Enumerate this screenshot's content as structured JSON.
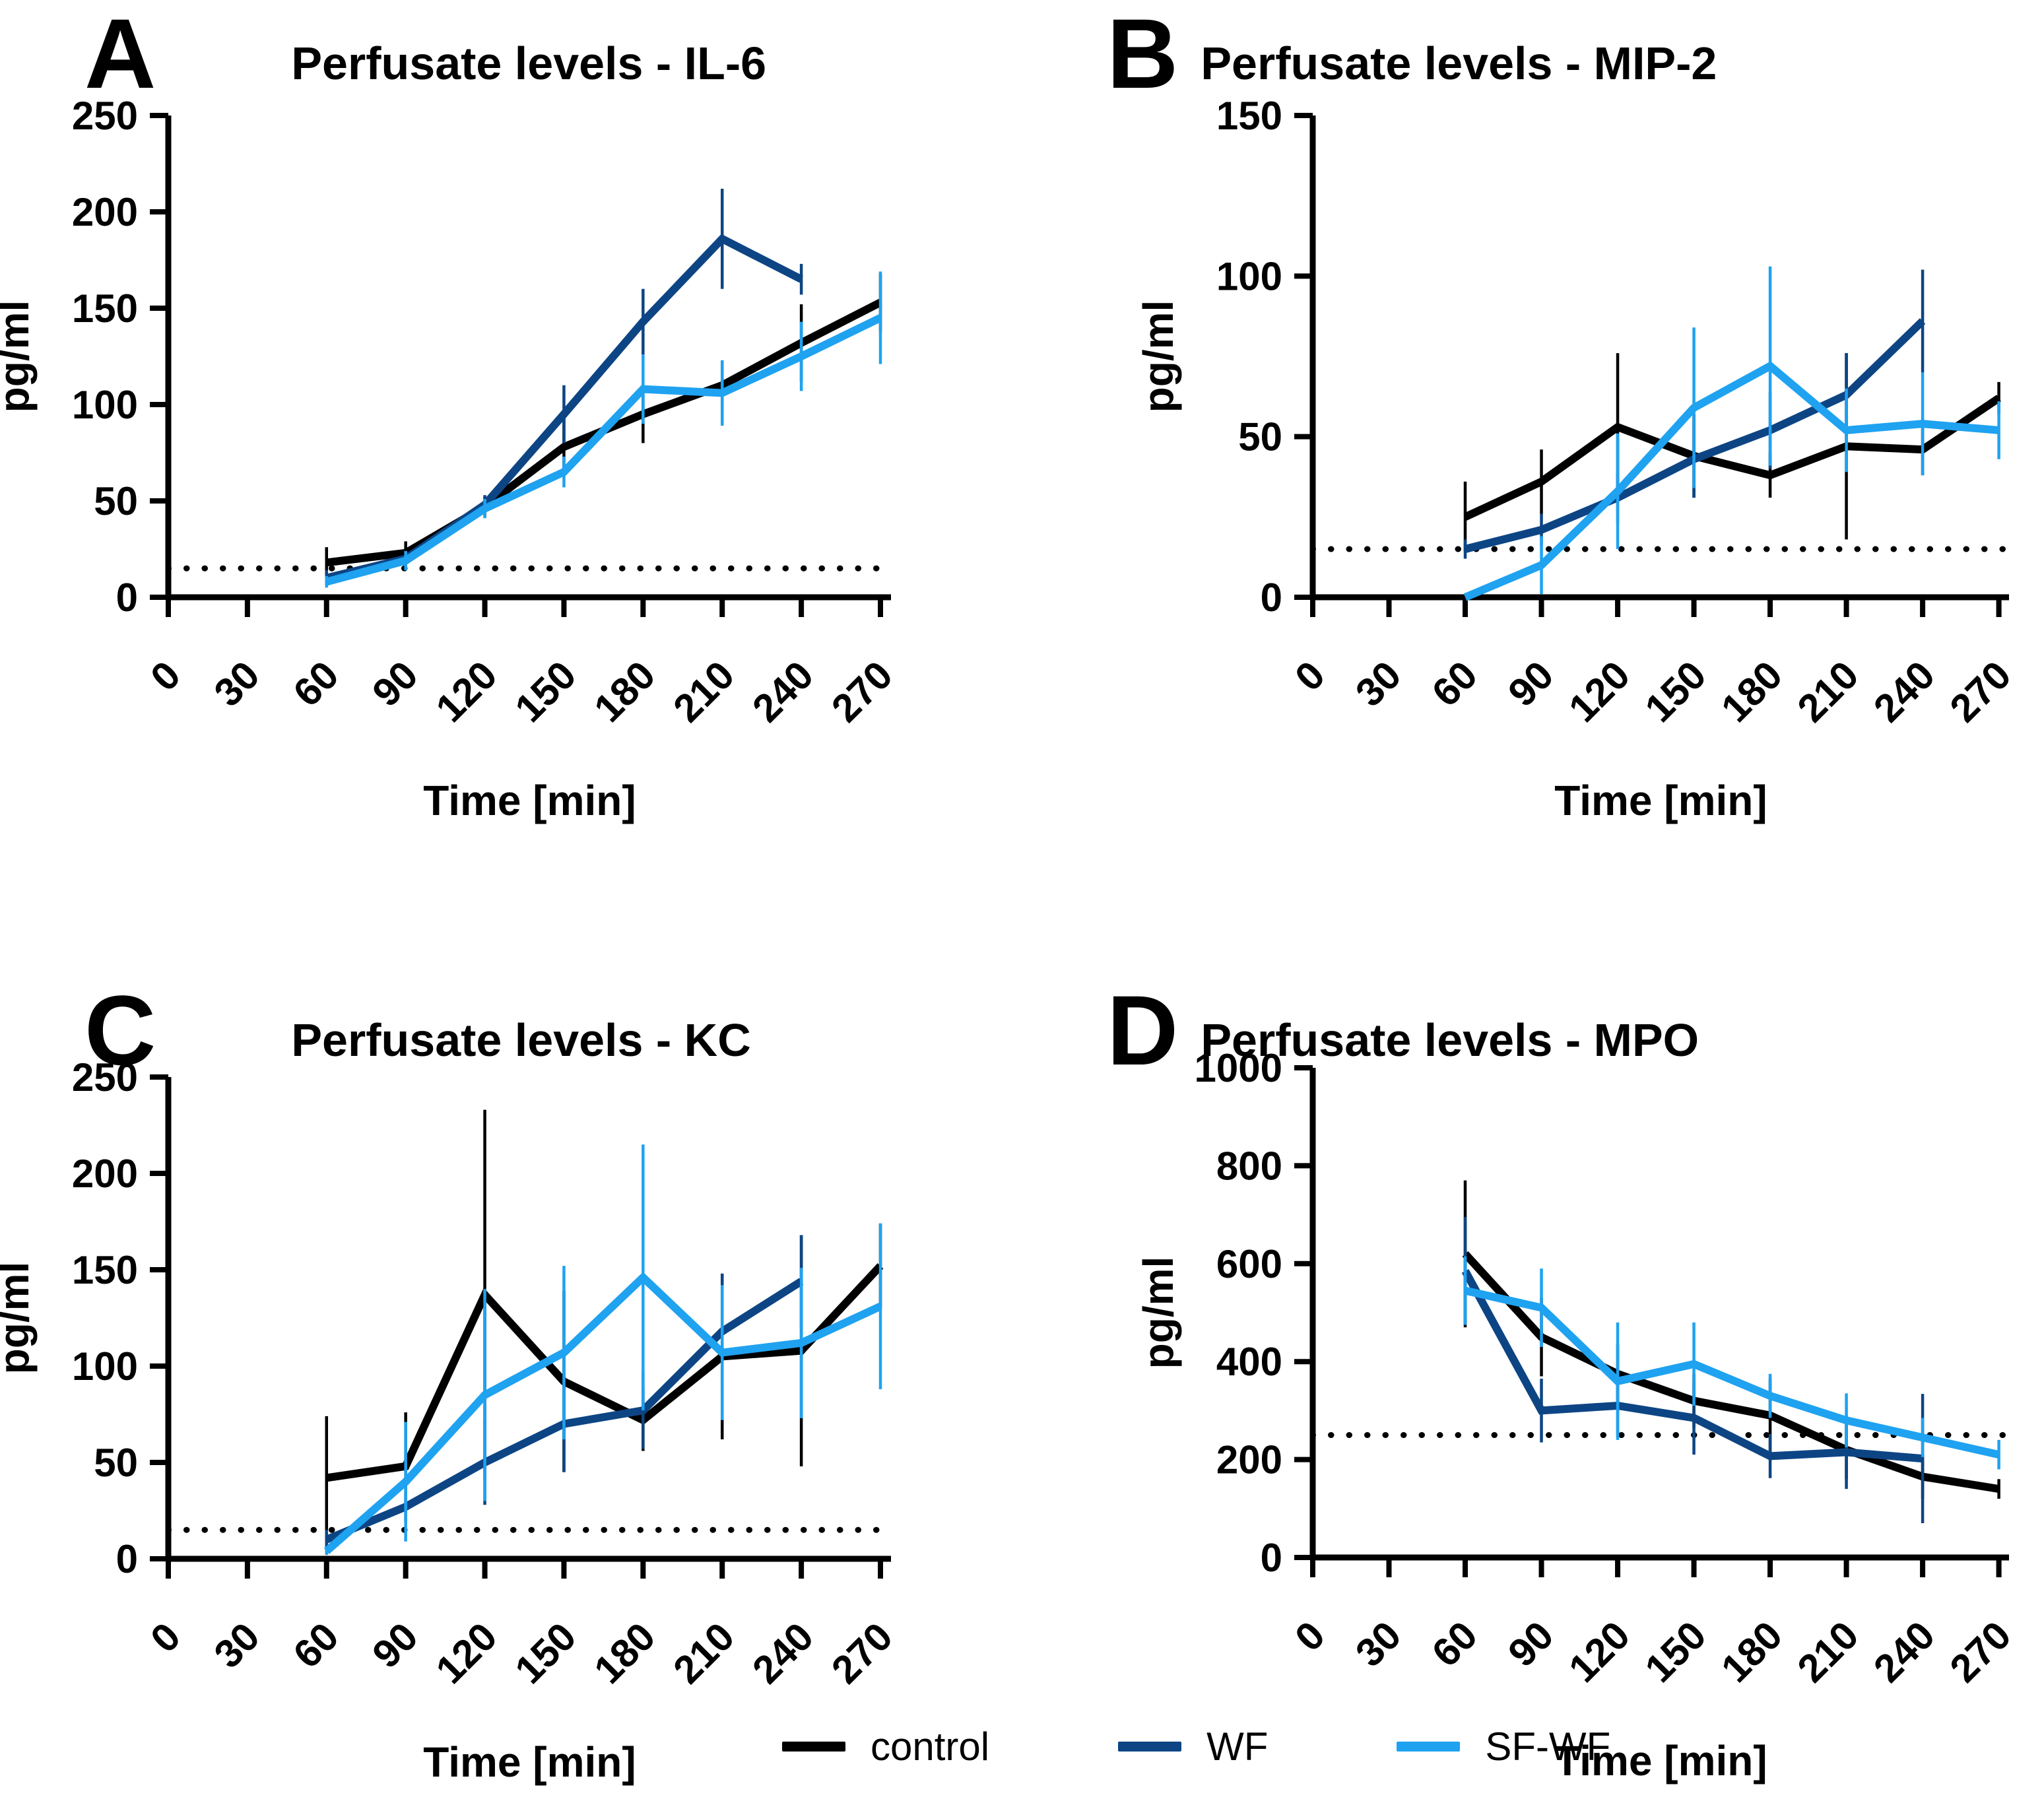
{
  "legend": {
    "items": [
      {
        "label": "control",
        "color": "#000000"
      },
      {
        "label": "WF",
        "color": "#0D4584"
      },
      {
        "label": "SF-WF",
        "color": "#1FA2F0"
      }
    ]
  },
  "chart_data": [
    {
      "type": "line",
      "letter": "A",
      "title": "Perfusate levels - IL-6",
      "xlabel": "Time [min]",
      "ylabel": "pg/ml",
      "xticks": [
        0,
        30,
        60,
        90,
        120,
        150,
        180,
        210,
        240,
        270
      ],
      "x": [
        60,
        90,
        120,
        150,
        180,
        210,
        240,
        270
      ],
      "ylim": [
        0,
        250
      ],
      "ystep": 50,
      "baseline": 15,
      "grid": false,
      "legend_position": "bottom",
      "series": [
        {
          "name": "control",
          "color": "#000000",
          "values": [
            18,
            23,
            47,
            78,
            95,
            110,
            132,
            153
          ],
          "errors": [
            8,
            6,
            5,
            15,
            15,
            12,
            20,
            15
          ]
        },
        {
          "name": "WF",
          "color": "#0D4584",
          "values": [
            10,
            20,
            48,
            95,
            143,
            186,
            165
          ],
          "errors": [
            4,
            4,
            5,
            15,
            17,
            26,
            8
          ]
        },
        {
          "name": "SF-WF",
          "color": "#1FA2F0",
          "values": [
            8,
            19,
            46,
            65,
            108,
            106,
            125,
            145
          ],
          "errors": [
            3,
            5,
            5,
            8,
            18,
            17,
            18,
            24
          ]
        }
      ]
    },
    {
      "type": "line",
      "letter": "B",
      "title": "Perfusate levels - MIP-2",
      "xlabel": "Time [min]",
      "ylabel": "pg/ml",
      "xticks": [
        0,
        30,
        60,
        90,
        120,
        150,
        180,
        210,
        240,
        270
      ],
      "x": [
        60,
        90,
        120,
        150,
        180,
        210,
        240,
        270
      ],
      "ylim": [
        0,
        150
      ],
      "ystep": 50,
      "baseline": 15,
      "grid": false,
      "legend_position": "bottom",
      "series": [
        {
          "name": "control",
          "color": "#000000",
          "values": [
            25,
            36,
            53,
            44,
            38,
            47,
            46,
            62
          ],
          "errors": [
            11,
            10,
            23,
            13,
            7,
            29,
            8,
            5
          ]
        },
        {
          "name": "WF",
          "color": "#0D4584",
          "values": [
            15,
            21,
            31,
            43,
            52,
            63,
            86
          ],
          "errors": [
            3,
            5,
            8,
            12,
            12,
            13,
            16
          ]
        },
        {
          "name": "SF-WF",
          "color": "#1FA2F0",
          "values": [
            0,
            10,
            33,
            59,
            72,
            52,
            54,
            52
          ],
          "errors": [
            0,
            9,
            18,
            25,
            31,
            13,
            16,
            9
          ]
        }
      ]
    },
    {
      "type": "line",
      "letter": "C",
      "title": "Perfusate levels - KC",
      "xlabel": "Time [min]",
      "ylabel": "pg/ml",
      "xticks": [
        0,
        30,
        60,
        90,
        120,
        150,
        180,
        210,
        240,
        270
      ],
      "x": [
        60,
        90,
        120,
        150,
        180,
        210,
        240,
        270
      ],
      "ylim": [
        0,
        250
      ],
      "ystep": 50,
      "baseline": 15,
      "grid": false,
      "legend_position": "bottom",
      "series": [
        {
          "name": "control",
          "color": "#000000",
          "values": [
            42,
            48,
            137,
            92,
            72,
            105,
            108,
            152
          ],
          "errors": [
            32,
            28,
            96,
            47,
            16,
            43,
            60,
            22
          ]
        },
        {
          "name": "WF",
          "color": "#0D4584",
          "values": [
            10,
            27,
            50,
            70,
            77,
            118,
            144
          ],
          "errors": [
            5,
            8,
            22,
            25,
            20,
            30,
            24
          ]
        },
        {
          "name": "SF-WF",
          "color": "#1FA2F0",
          "values": [
            4,
            40,
            85,
            107,
            146,
            107,
            112,
            131
          ],
          "errors": [
            2,
            31,
            55,
            45,
            69,
            35,
            39,
            43
          ]
        }
      ]
    },
    {
      "type": "line",
      "letter": "D",
      "title": "Perfusate levels - MPO",
      "xlabel": "Time [min]",
      "ylabel": "pg/ml",
      "xticks": [
        0,
        30,
        60,
        90,
        120,
        150,
        180,
        210,
        240,
        270
      ],
      "x": [
        60,
        90,
        120,
        150,
        180,
        210,
        240,
        270
      ],
      "ylim": [
        0,
        1000
      ],
      "ystep": 200,
      "baseline": 250,
      "grid": false,
      "legend_position": "bottom",
      "series": [
        {
          "name": "control",
          "color": "#000000",
          "values": [
            620,
            450,
            375,
            320,
            290,
            220,
            165,
            140
          ],
          "errors": [
            150,
            80,
            60,
            55,
            75,
            60,
            45,
            20
          ]
        },
        {
          "name": "WF",
          "color": "#0D4584",
          "values": [
            585,
            300,
            310,
            285,
            207,
            215,
            202
          ],
          "errors": [
            110,
            65,
            65,
            75,
            45,
            75,
            132
          ]
        },
        {
          "name": "SF-WF",
          "color": "#1FA2F0",
          "values": [
            545,
            510,
            360,
            395,
            330,
            280,
            245,
            210
          ],
          "errors": [
            70,
            80,
            120,
            85,
            45,
            55,
            40,
            30
          ]
        }
      ]
    }
  ]
}
